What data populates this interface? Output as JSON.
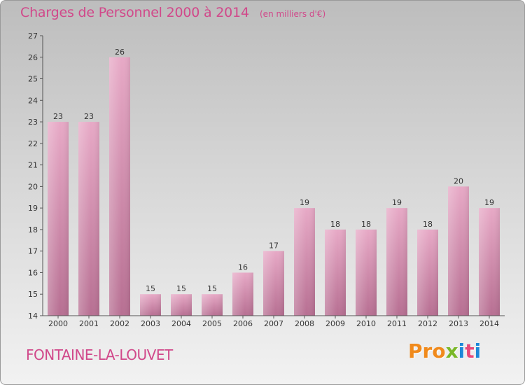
{
  "chart_data": {
    "type": "bar",
    "title": "Charges de Personnel 2000 à 2014",
    "subtitle": "(en milliers d'€)",
    "categories": [
      "2000",
      "2001",
      "2002",
      "2003",
      "2004",
      "2005",
      "2006",
      "2007",
      "2008",
      "2009",
      "2010",
      "2011",
      "2012",
      "2013",
      "2014"
    ],
    "values": [
      23,
      23,
      26,
      15,
      15,
      15,
      16,
      17,
      19,
      18,
      18,
      19,
      18,
      20,
      19
    ],
    "yticks": [
      14,
      15,
      16,
      17,
      18,
      19,
      20,
      21,
      22,
      23,
      24,
      25,
      26,
      27
    ],
    "ylim": [
      14,
      27
    ],
    "grid": false,
    "bar_color": "#d8789f",
    "bar_color_light": "#eab3cc",
    "accent_color": "#d1488a"
  },
  "footer": {
    "place_name": "FONTAINE-LA-LOUVET",
    "logo_text": "Proxiti",
    "logo_colors": [
      "#f08a1c",
      "#f08a1c",
      "#f08a1c",
      "#7ab828",
      "#1e88d8",
      "#e84a7a",
      "#1e88d8"
    ]
  }
}
